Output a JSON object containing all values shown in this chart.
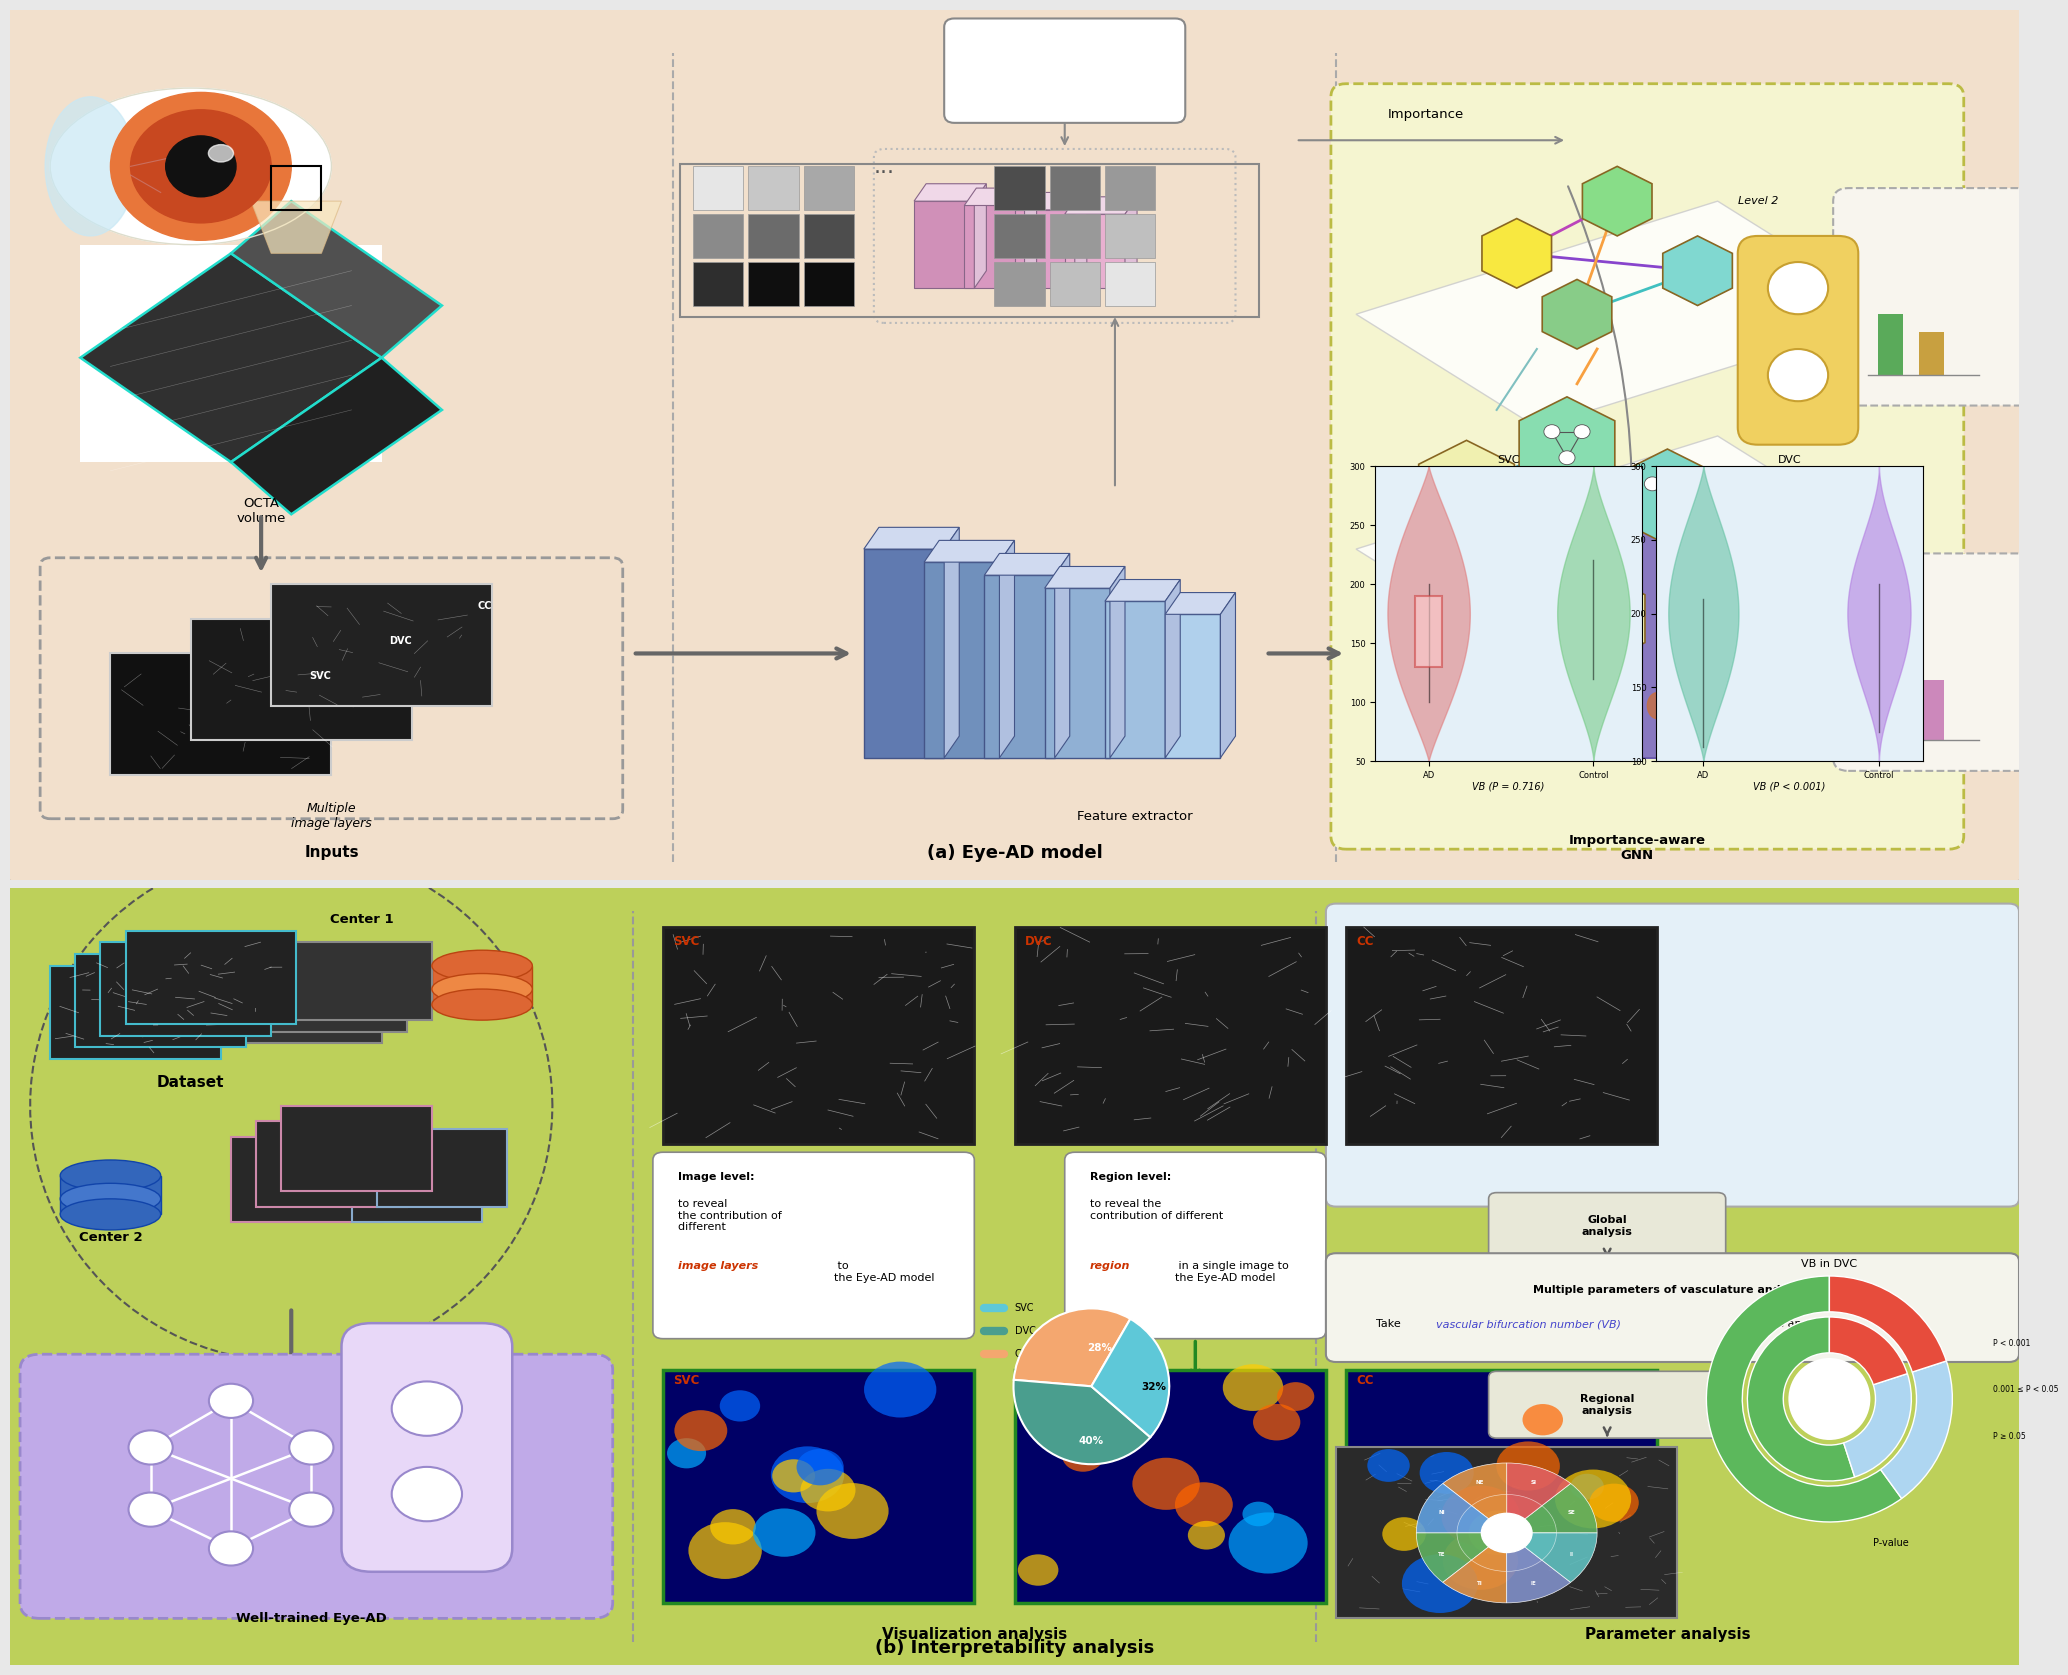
{
  "fig_width": 20.5,
  "fig_height": 16.89,
  "top_bg": "#f2e0cc",
  "bottom_bg": "#bdd05a",
  "title_a": "(a) Eye-AD model",
  "title_b": "(b) Interpretability analysis",
  "pie_data": [
    32,
    40,
    28
  ],
  "pie_colors": [
    "#f4a76f",
    "#4a9e8e",
    "#5ec8d8"
  ],
  "pie_labels": [
    "SVC",
    "DVC",
    "CC"
  ],
  "p_labels": [
    "P < 0.001",
    "0.001 ≤ P < 0.05",
    "P ≥ 0.05"
  ],
  "p_colors": [
    "#5cb85c",
    "#aed6f1",
    "#e74c3c"
  ],
  "eoad_bar_colors": [
    "#5aaa5a",
    "#c8a040"
  ],
  "mci_bar_colors": [
    "#4a6aaa",
    "#cc88bb"
  ],
  "svc_violin_color": "#e07070",
  "ctrl_svc_color": "#70c898",
  "ad_dvc_color": "#70c0a0",
  "ctrl_dvc_color": "#b070e0",
  "gnn_box_color": "#f5f5d0",
  "gnn_border_color": "#bbbb44"
}
